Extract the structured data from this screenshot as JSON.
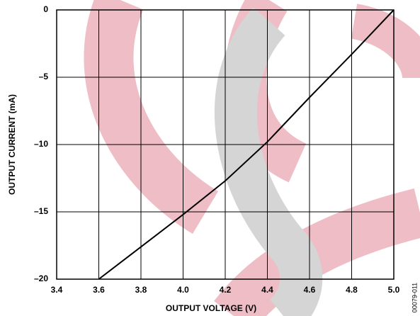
{
  "chart_data": {
    "type": "line",
    "xlabel": "OUTPUT VOLTAGE (V)",
    "ylabel": "OUTPUT CURRENT (mA)",
    "note": "00079-011",
    "x": [
      3.6,
      3.8,
      4.0,
      4.2,
      4.4,
      4.6,
      4.8,
      5.0
    ],
    "values": [
      -20,
      -17.6,
      -15.2,
      -12.7,
      -9.8,
      -6.5,
      -3.3,
      0
    ],
    "color": "#000000",
    "xlim": [
      3.4,
      5.0
    ],
    "xticks": [
      3.4,
      3.6,
      3.8,
      {
        "value": 4.0,
        "label": "4.0"
      },
      4.2,
      4.4,
      4.6,
      4.8,
      {
        "value": 5.0,
        "label": "5.0"
      }
    ],
    "ylim": [
      -20,
      0
    ],
    "yticks": [
      {
        "value": -20,
        "label": "–20"
      },
      {
        "value": -15,
        "label": "–15"
      },
      {
        "value": -10,
        "label": "–10"
      },
      {
        "value": -5,
        "label": "–5"
      },
      0
    ],
    "grid": true
  }
}
